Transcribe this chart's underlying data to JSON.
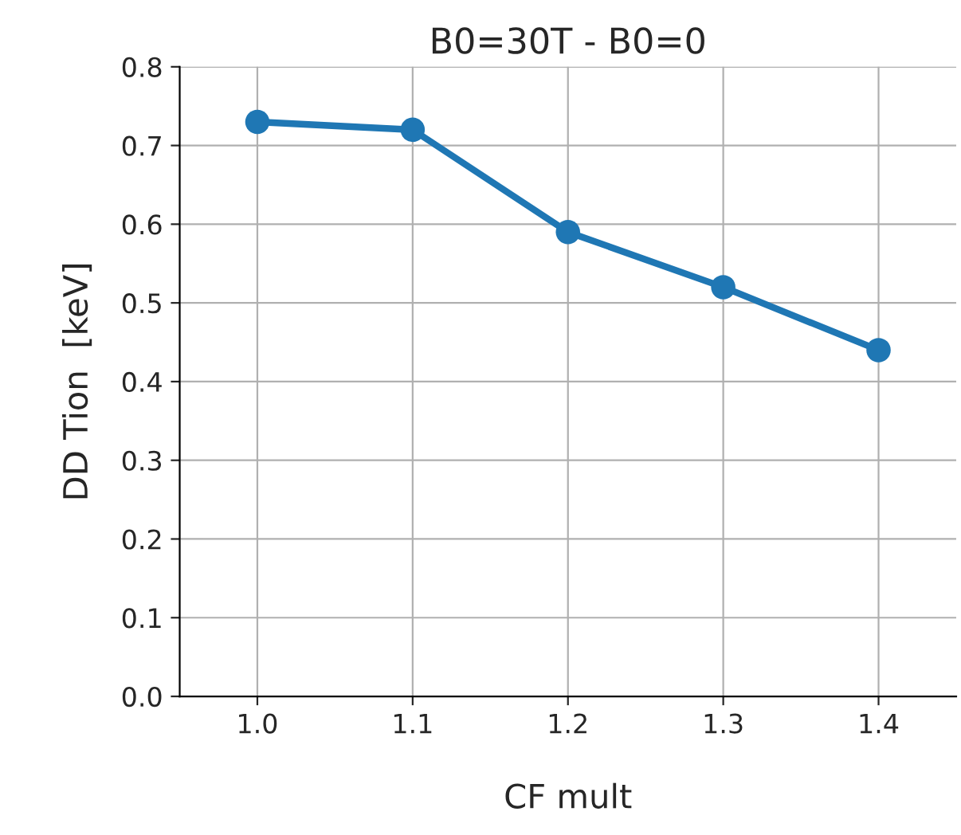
{
  "chart_data": {
    "type": "line",
    "title": "B0=30T - B0=0",
    "xlabel": "CF mult",
    "ylabel": "DD Tion  [keV]",
    "x": [
      1.0,
      1.1,
      1.2,
      1.3,
      1.4
    ],
    "series": [
      {
        "color": "#1f77b4",
        "values": [
          0.73,
          0.72,
          0.59,
          0.52,
          0.44
        ]
      }
    ],
    "xlim": [
      0.95,
      1.45
    ],
    "xticks": [
      {
        "value": 1.0,
        "label": "1.0"
      },
      {
        "value": 1.1,
        "label": "1.1"
      },
      {
        "value": 1.2,
        "label": "1.2"
      },
      {
        "value": 1.3,
        "label": "1.3"
      },
      {
        "value": 1.4,
        "label": "1.4"
      }
    ],
    "ylim": [
      0,
      0.8
    ],
    "yticks": [
      {
        "value": 0,
        "label": "0.0"
      },
      {
        "value": 0.1,
        "label": "0.1"
      },
      {
        "value": 0.2,
        "label": "0.2"
      },
      {
        "value": 0.3,
        "label": "0.3"
      },
      {
        "value": 0.4,
        "label": "0.4"
      },
      {
        "value": 0.5,
        "label": "0.5"
      },
      {
        "value": 0.6,
        "label": "0.6"
      },
      {
        "value": 0.7,
        "label": "0.7"
      },
      {
        "value": 0.8,
        "label": "0.8"
      }
    ],
    "grid": true,
    "marker": "circle",
    "line_style": "solid"
  }
}
